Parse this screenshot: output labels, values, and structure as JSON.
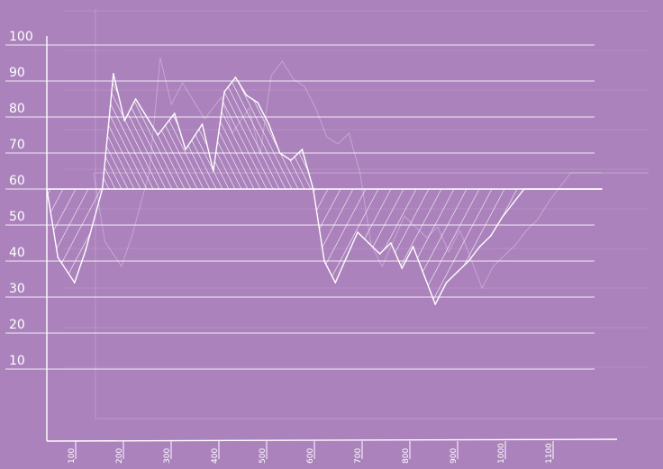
{
  "chart_data": {
    "type": "area",
    "title": "",
    "xlabel": "",
    "ylabel": "",
    "baseline": 60,
    "ylim": [
      0,
      100
    ],
    "y_ticks": [
      10,
      20,
      30,
      40,
      50,
      60,
      70,
      80,
      90,
      100
    ],
    "x_ticks": [
      "100",
      "200",
      "300",
      "400",
      "500",
      "600",
      "700",
      "800",
      "900",
      "1000",
      "1100"
    ],
    "grid": true,
    "legend": "none",
    "series": [
      {
        "x": [
          100,
          120,
          150,
          170,
          200,
          220,
          240,
          260,
          300,
          330,
          350,
          380,
          400,
          420,
          440,
          460,
          480,
          500,
          520,
          540,
          560,
          580,
          600,
          620,
          640,
          660,
          680,
          700,
          720,
          740,
          760,
          780,
          800,
          820,
          840,
          860,
          880,
          900,
          920,
          940,
          960,
          980,
          1000,
          1020,
          1040,
          1060,
          1080,
          1100
        ],
        "values": [
          60,
          41,
          34,
          43,
          60,
          92,
          79,
          85,
          75,
          81,
          71,
          78,
          65,
          87,
          91,
          86,
          84,
          78,
          70,
          68,
          71,
          60,
          40,
          34,
          41,
          48,
          45,
          42,
          45,
          38,
          44,
          36,
          28,
          34,
          37,
          40,
          44,
          47,
          52,
          56,
          60,
          60,
          60,
          60,
          60,
          60,
          60,
          60
        ]
      }
    ],
    "colors": {
      "background": "#ab82bc",
      "ink": "#ffffff"
    }
  }
}
